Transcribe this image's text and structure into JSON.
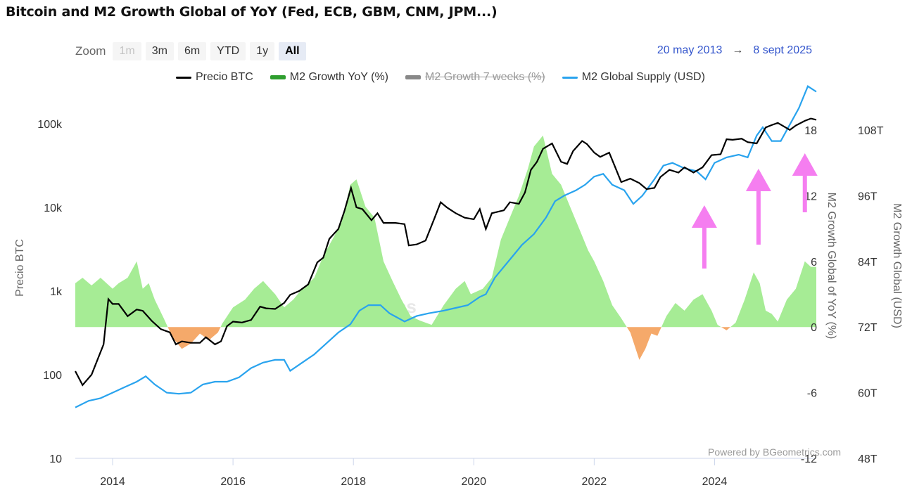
{
  "title": "Bitcoin and M2 Growth Global of YoY (Fed, ECB, GBM, CNM, JPM...)",
  "zoom": {
    "label": "Zoom",
    "buttons": [
      {
        "label": "1m",
        "state": "disabled"
      },
      {
        "label": "3m",
        "state": "normal"
      },
      {
        "label": "6m",
        "state": "normal"
      },
      {
        "label": "YTD",
        "state": "normal"
      },
      {
        "label": "1y",
        "state": "normal"
      },
      {
        "label": "All",
        "state": "active"
      }
    ]
  },
  "date_range": {
    "from": "20 may 2013",
    "arrow": "→",
    "to": "8 sept 2025"
  },
  "legend": [
    {
      "label": "Precio BTC",
      "color": "#000000",
      "kind": "line",
      "visible": true
    },
    {
      "label": "M2 Growth YoY (%)",
      "color": "#2e9e2e",
      "kind": "area",
      "visible": true
    },
    {
      "label": "M2 Growth 7 weeks (%)",
      "color": "#888888",
      "kind": "area",
      "visible": false
    },
    {
      "label": "M2 Global Supply (USD)",
      "color": "#29a3ee",
      "kind": "line",
      "visible": true
    }
  ],
  "credit": "Powered by BGeometrics.com",
  "watermark": "BGeometrics",
  "colors": {
    "btc": "#000000",
    "m2_pos": "#a6ec95",
    "m2_neg": "#f5a96a",
    "m2_global": "#29a3ee",
    "arrow": "#f57ef0"
  },
  "chart_data": {
    "type": "line",
    "title": "Bitcoin and M2 Growth Global of YoY (Fed, ECB, GBM, CNM, JPM...)",
    "x_range": [
      2013.38,
      2025.69
    ],
    "x_ticks": [
      "2014",
      "2016",
      "2018",
      "2020",
      "2022",
      "2024"
    ],
    "axes": {
      "btc": {
        "label": "Precio BTC",
        "scale": "log",
        "range": [
          10,
          200000
        ],
        "ticks": [
          "10",
          "100",
          "1k",
          "10k",
          "100k"
        ],
        "tick_values": [
          10,
          100,
          1000,
          10000,
          100000
        ]
      },
      "m2_yoy": {
        "label": "M2 Growth Global of YoY (%)",
        "range": [
          -12,
          18
        ],
        "ticks": [
          "-12",
          "-6",
          "0",
          "6",
          "12",
          "18"
        ],
        "tick_values": [
          -12,
          -6,
          0,
          6,
          12,
          18
        ]
      },
      "m2_usd": {
        "label": "M2 Growth Global (USD)",
        "range": [
          48,
          108
        ],
        "ticks": [
          "48T",
          "60T",
          "72T",
          "84T",
          "96T",
          "108T"
        ],
        "tick_values": [
          48,
          60,
          72,
          84,
          96,
          108
        ]
      }
    },
    "series": [
      {
        "name": "Precio BTC",
        "axis": "btc",
        "points": [
          [
            2013.38,
            110
          ],
          [
            2013.5,
            75
          ],
          [
            2013.65,
            100
          ],
          [
            2013.85,
            230
          ],
          [
            2013.93,
            800
          ],
          [
            2014.0,
            700
          ],
          [
            2014.1,
            700
          ],
          [
            2014.25,
            500
          ],
          [
            2014.4,
            600
          ],
          [
            2014.5,
            580
          ],
          [
            2014.65,
            440
          ],
          [
            2014.8,
            350
          ],
          [
            2014.95,
            320
          ],
          [
            2015.05,
            230
          ],
          [
            2015.15,
            250
          ],
          [
            2015.3,
            240
          ],
          [
            2015.45,
            240
          ],
          [
            2015.55,
            280
          ],
          [
            2015.7,
            230
          ],
          [
            2015.8,
            250
          ],
          [
            2015.9,
            380
          ],
          [
            2016.0,
            430
          ],
          [
            2016.15,
            420
          ],
          [
            2016.3,
            450
          ],
          [
            2016.45,
            650
          ],
          [
            2016.55,
            620
          ],
          [
            2016.7,
            610
          ],
          [
            2016.85,
            720
          ],
          [
            2016.95,
            900
          ],
          [
            2017.1,
            1000
          ],
          [
            2017.25,
            1200
          ],
          [
            2017.4,
            2200
          ],
          [
            2017.5,
            2500
          ],
          [
            2017.6,
            4200
          ],
          [
            2017.75,
            5500
          ],
          [
            2017.85,
            9000
          ],
          [
            2017.96,
            17000
          ],
          [
            2018.05,
            10000
          ],
          [
            2018.15,
            9500
          ],
          [
            2018.3,
            7000
          ],
          [
            2018.4,
            8500
          ],
          [
            2018.5,
            6500
          ],
          [
            2018.7,
            6500
          ],
          [
            2018.85,
            6300
          ],
          [
            2018.92,
            3500
          ],
          [
            2019.05,
            3600
          ],
          [
            2019.2,
            4000
          ],
          [
            2019.35,
            7500
          ],
          [
            2019.45,
            11500
          ],
          [
            2019.55,
            10000
          ],
          [
            2019.7,
            8500
          ],
          [
            2019.85,
            7500
          ],
          [
            2020.0,
            7200
          ],
          [
            2020.1,
            9500
          ],
          [
            2020.2,
            5500
          ],
          [
            2020.3,
            8500
          ],
          [
            2020.5,
            9200
          ],
          [
            2020.6,
            11500
          ],
          [
            2020.75,
            11000
          ],
          [
            2020.85,
            15000
          ],
          [
            2020.95,
            28000
          ],
          [
            2021.05,
            35000
          ],
          [
            2021.15,
            50000
          ],
          [
            2021.3,
            58000
          ],
          [
            2021.45,
            35000
          ],
          [
            2021.55,
            33000
          ],
          [
            2021.65,
            47000
          ],
          [
            2021.8,
            62000
          ],
          [
            2021.88,
            57000
          ],
          [
            2022.0,
            45000
          ],
          [
            2022.1,
            40000
          ],
          [
            2022.25,
            45000
          ],
          [
            2022.35,
            30000
          ],
          [
            2022.45,
            20000
          ],
          [
            2022.6,
            22000
          ],
          [
            2022.75,
            19500
          ],
          [
            2022.87,
            16500
          ],
          [
            2023.0,
            17000
          ],
          [
            2023.1,
            23000
          ],
          [
            2023.25,
            28000
          ],
          [
            2023.4,
            26000
          ],
          [
            2023.5,
            30000
          ],
          [
            2023.65,
            26000
          ],
          [
            2023.8,
            30000
          ],
          [
            2023.95,
            42000
          ],
          [
            2024.1,
            43000
          ],
          [
            2024.2,
            65000
          ],
          [
            2024.3,
            64000
          ],
          [
            2024.45,
            66000
          ],
          [
            2024.55,
            60000
          ],
          [
            2024.7,
            58000
          ],
          [
            2024.85,
            90000
          ],
          [
            2024.95,
            96000
          ],
          [
            2025.05,
            102000
          ],
          [
            2025.25,
            84000
          ],
          [
            2025.35,
            95000
          ],
          [
            2025.5,
            108000
          ],
          [
            2025.6,
            115000
          ],
          [
            2025.69,
            111000
          ]
        ]
      },
      {
        "name": "M2 Growth YoY (%)",
        "axis": "m2_yoy",
        "points": [
          [
            2013.38,
            4
          ],
          [
            2013.5,
            4.5
          ],
          [
            2013.65,
            3.8
          ],
          [
            2013.8,
            4.5
          ],
          [
            2014.0,
            3.5
          ],
          [
            2014.1,
            4
          ],
          [
            2014.25,
            4.5
          ],
          [
            2014.4,
            6
          ],
          [
            2014.5,
            3.5
          ],
          [
            2014.6,
            4
          ],
          [
            2014.7,
            2.5
          ],
          [
            2014.85,
            0.8
          ],
          [
            2015.0,
            -1
          ],
          [
            2015.15,
            -2
          ],
          [
            2015.3,
            -1.5
          ],
          [
            2015.45,
            -0.6
          ],
          [
            2015.6,
            -1.2
          ],
          [
            2015.75,
            -0.5
          ],
          [
            2015.82,
            0.3
          ],
          [
            2016.0,
            1.8
          ],
          [
            2016.2,
            2.5
          ],
          [
            2016.35,
            3.5
          ],
          [
            2016.5,
            4.2
          ],
          [
            2016.7,
            3
          ],
          [
            2016.85,
            1.8
          ],
          [
            2017.0,
            2.5
          ],
          [
            2017.15,
            3.5
          ],
          [
            2017.35,
            4.5
          ],
          [
            2017.5,
            6.5
          ],
          [
            2017.65,
            8
          ],
          [
            2017.8,
            9.5
          ],
          [
            2017.95,
            13
          ],
          [
            2018.05,
            13.5
          ],
          [
            2018.2,
            11
          ],
          [
            2018.35,
            10
          ],
          [
            2018.5,
            6
          ],
          [
            2018.65,
            4.2
          ],
          [
            2018.8,
            2.5
          ],
          [
            2018.95,
            1
          ],
          [
            2019.1,
            0.6
          ],
          [
            2019.3,
            0.2
          ],
          [
            2019.5,
            2
          ],
          [
            2019.7,
            3.5
          ],
          [
            2019.85,
            4.2
          ],
          [
            2019.95,
            3
          ],
          [
            2020.15,
            3.5
          ],
          [
            2020.3,
            4.5
          ],
          [
            2020.45,
            8
          ],
          [
            2020.6,
            10
          ],
          [
            2020.75,
            12
          ],
          [
            2020.9,
            14.5
          ],
          [
            2021.0,
            16.5
          ],
          [
            2021.15,
            17.5
          ],
          [
            2021.3,
            14
          ],
          [
            2021.45,
            13
          ],
          [
            2021.6,
            11
          ],
          [
            2021.75,
            9
          ],
          [
            2021.9,
            7
          ],
          [
            2022.0,
            6
          ],
          [
            2022.15,
            4.2
          ],
          [
            2022.3,
            2
          ],
          [
            2022.45,
            0.8
          ],
          [
            2022.6,
            -0.5
          ],
          [
            2022.75,
            -3
          ],
          [
            2022.85,
            -2
          ],
          [
            2022.95,
            -0.6
          ],
          [
            2023.05,
            -0.8
          ],
          [
            2023.2,
            1
          ],
          [
            2023.35,
            2.2
          ],
          [
            2023.5,
            1.5
          ],
          [
            2023.65,
            2.5
          ],
          [
            2023.8,
            3
          ],
          [
            2023.95,
            1.5
          ],
          [
            2024.05,
            0.2
          ],
          [
            2024.2,
            -0.3
          ],
          [
            2024.35,
            0.4
          ],
          [
            2024.5,
            2.5
          ],
          [
            2024.65,
            5
          ],
          [
            2024.75,
            4
          ],
          [
            2024.85,
            1.5
          ],
          [
            2024.95,
            1.2
          ],
          [
            2025.05,
            0.5
          ],
          [
            2025.2,
            2.5
          ],
          [
            2025.35,
            3.5
          ],
          [
            2025.5,
            6
          ],
          [
            2025.6,
            5.5
          ],
          [
            2025.69,
            5.5
          ]
        ]
      },
      {
        "name": "M2 Global Supply (USD)",
        "axis": "m2_usd",
        "points": [
          [
            2013.38,
            57.3
          ],
          [
            2013.6,
            58.5
          ],
          [
            2013.8,
            59
          ],
          [
            2014.0,
            60
          ],
          [
            2014.2,
            61
          ],
          [
            2014.4,
            62
          ],
          [
            2014.55,
            63
          ],
          [
            2014.7,
            61.5
          ],
          [
            2014.9,
            60
          ],
          [
            2015.1,
            59.8
          ],
          [
            2015.3,
            60
          ],
          [
            2015.5,
            61.5
          ],
          [
            2015.7,
            62
          ],
          [
            2015.9,
            62
          ],
          [
            2016.1,
            62.8
          ],
          [
            2016.3,
            64.5
          ],
          [
            2016.5,
            65.5
          ],
          [
            2016.7,
            66
          ],
          [
            2016.85,
            66
          ],
          [
            2016.95,
            64
          ],
          [
            2017.15,
            65.5
          ],
          [
            2017.35,
            67
          ],
          [
            2017.55,
            69
          ],
          [
            2017.75,
            71
          ],
          [
            2017.95,
            72.5
          ],
          [
            2018.1,
            75
          ],
          [
            2018.25,
            76
          ],
          [
            2018.45,
            76
          ],
          [
            2018.6,
            74.5
          ],
          [
            2018.85,
            73
          ],
          [
            2019.05,
            74
          ],
          [
            2019.25,
            74.5
          ],
          [
            2019.5,
            75
          ],
          [
            2019.7,
            75.5
          ],
          [
            2019.9,
            76
          ],
          [
            2020.1,
            77.5
          ],
          [
            2020.2,
            78
          ],
          [
            2020.35,
            81
          ],
          [
            2020.5,
            83
          ],
          [
            2020.65,
            85
          ],
          [
            2020.8,
            87
          ],
          [
            2021.0,
            89
          ],
          [
            2021.2,
            92
          ],
          [
            2021.35,
            95
          ],
          [
            2021.5,
            96
          ],
          [
            2021.7,
            97
          ],
          [
            2021.85,
            98
          ],
          [
            2022.0,
            99.5
          ],
          [
            2022.15,
            100
          ],
          [
            2022.3,
            98
          ],
          [
            2022.5,
            97
          ],
          [
            2022.65,
            94.5
          ],
          [
            2022.8,
            96
          ],
          [
            2023.0,
            99
          ],
          [
            2023.15,
            101.5
          ],
          [
            2023.3,
            102
          ],
          [
            2023.5,
            101
          ],
          [
            2023.7,
            100.5
          ],
          [
            2023.85,
            99
          ],
          [
            2024.0,
            102
          ],
          [
            2024.2,
            103
          ],
          [
            2024.4,
            103.5
          ],
          [
            2024.55,
            103
          ],
          [
            2024.7,
            107
          ],
          [
            2024.8,
            108.5
          ],
          [
            2024.95,
            106
          ],
          [
            2025.1,
            106
          ],
          [
            2025.25,
            109
          ],
          [
            2025.4,
            112
          ],
          [
            2025.55,
            116
          ],
          [
            2025.69,
            115
          ]
        ]
      }
    ],
    "annotations": [
      {
        "type": "arrow",
        "x": 2023.83
      },
      {
        "type": "arrow",
        "x": 2024.73
      },
      {
        "type": "arrow",
        "x": 2025.5
      }
    ]
  }
}
